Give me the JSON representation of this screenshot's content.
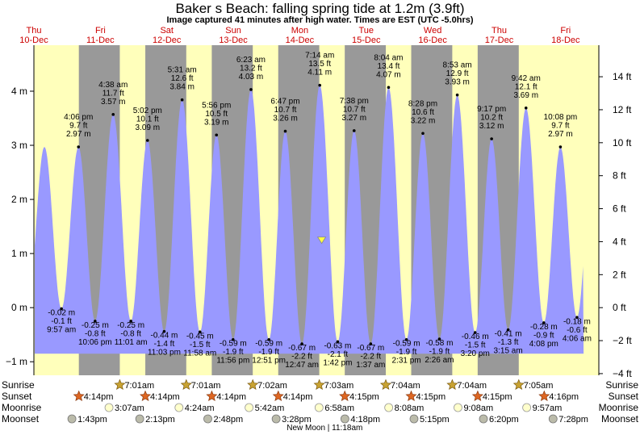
{
  "header": {
    "title": "Baker s Beach: falling  spring tide at 1.2m (3.9ft)",
    "subtitle": "Image captured 41 minutes after high water. Times are EST (UTC -5.0hrs)"
  },
  "colors": {
    "day": "#ffffbb",
    "night": "#999999",
    "tide_fill": "#9999ff",
    "day_label": "#cc0000",
    "marker": "#ffff44"
  },
  "chart_data": {
    "type": "area",
    "title": "Baker s Beach: falling  spring tide at 1.2m (3.9ft)",
    "x_range_hours": [
      0,
      204
    ],
    "ylim_m": [
      -1.25,
      4.85
    ],
    "y_left_ticks": [
      {
        "v": -1,
        "label": "−1 m"
      },
      {
        "v": 0,
        "label": "0 m"
      },
      {
        "v": 1,
        "label": "1 m"
      },
      {
        "v": 2,
        "label": "2 m"
      },
      {
        "v": 3,
        "label": "3 m"
      },
      {
        "v": 4,
        "label": "4 m"
      }
    ],
    "y_right_ticks": [
      {
        "v": -4,
        "label": "−4 ft"
      },
      {
        "v": -2,
        "label": "−2 ft"
      },
      {
        "v": 0,
        "label": "0 ft"
      },
      {
        "v": 2,
        "label": "2 ft"
      },
      {
        "v": 4,
        "label": "4 ft"
      },
      {
        "v": 6,
        "label": "6 ft"
      },
      {
        "v": 8,
        "label": "8 ft"
      },
      {
        "v": 10,
        "label": "10 ft"
      },
      {
        "v": 12,
        "label": "12 ft"
      },
      {
        "v": 14,
        "label": "14 ft"
      }
    ],
    "days": [
      {
        "dow": "Thu",
        "date": "10-Dec",
        "h": 0
      },
      {
        "dow": "Fri",
        "date": "11-Dec",
        "h": 24
      },
      {
        "dow": "Sat",
        "date": "12-Dec",
        "h": 48
      },
      {
        "dow": "Sun",
        "date": "13-Dec",
        "h": 72
      },
      {
        "dow": "Mon",
        "date": "14-Dec",
        "h": 96
      },
      {
        "dow": "Tue",
        "date": "15-Dec",
        "h": 120
      },
      {
        "dow": "Wed",
        "date": "16-Dec",
        "h": 144
      },
      {
        "dow": "Thu",
        "date": "17-Dec",
        "h": 168
      },
      {
        "dow": "Fri",
        "date": "18-Dec",
        "h": 192
      }
    ],
    "nights": [
      [
        16.23,
        31.02
      ],
      [
        40.23,
        55.02
      ],
      [
        64.23,
        79.03
      ],
      [
        88.23,
        103.05
      ],
      [
        112.25,
        127.07
      ],
      [
        136.25,
        151.07
      ],
      [
        160.25,
        175.08
      ]
    ],
    "tide_series": [
      {
        "kind": "low",
        "h": 9.95,
        "m": -0.02,
        "lines": [
          "-0.02 m",
          "-0.1 ft",
          "9:57 am"
        ]
      },
      {
        "kind": "high",
        "h": 16.1,
        "m": 2.97,
        "lines": [
          "4:06 pm",
          "9.7 ft",
          "2.97 m"
        ]
      },
      {
        "kind": "low",
        "h": 22.1,
        "m": -0.25,
        "lines": [
          "-0.25 m",
          "-0.8 ft",
          "10:06 pm"
        ]
      },
      {
        "kind": "high",
        "h": 28.63,
        "m": 3.57,
        "lines": [
          "4:38 am",
          "11.7 ft",
          "3.57 m"
        ]
      },
      {
        "kind": "low",
        "h": 35.02,
        "m": -0.25,
        "lines": [
          "-0.25 m",
          "-0.8 ft",
          "11:01 am"
        ]
      },
      {
        "kind": "high",
        "h": 41.03,
        "m": 3.09,
        "lines": [
          "5:02 pm",
          "10.1 ft",
          "3.09 m"
        ]
      },
      {
        "kind": "low",
        "h": 47.05,
        "m": -0.44,
        "lines": [
          "-0.44 m",
          "-1.4 ft",
          "11:03 pm"
        ]
      },
      {
        "kind": "high",
        "h": 53.52,
        "m": 3.84,
        "lines": [
          "5:31 am",
          "12.6 ft",
          "3.84 m"
        ]
      },
      {
        "kind": "low",
        "h": 59.97,
        "m": -0.45,
        "lines": [
          "-0.45 m",
          "-1.5 ft",
          "11:58 am"
        ]
      },
      {
        "kind": "high",
        "h": 65.93,
        "m": 3.19,
        "lines": [
          "5:56 pm",
          "10.5 ft",
          "3.19 m"
        ]
      },
      {
        "kind": "low",
        "h": 71.93,
        "m": -0.59,
        "lines": [
          "-0.59 m",
          "-1.9 ft",
          "11:56 pm"
        ]
      },
      {
        "kind": "high",
        "h": 78.38,
        "m": 4.03,
        "lines": [
          "6:23 am",
          "13.2 ft",
          "4.03 m"
        ]
      },
      {
        "kind": "low",
        "h": 84.85,
        "m": -0.59,
        "lines": [
          "-0.59 m",
          "-1.9 ft",
          "12:51 pm"
        ]
      },
      {
        "kind": "high",
        "h": 90.78,
        "m": 3.26,
        "lines": [
          "6:47 pm",
          "10.7 ft",
          "3.26 m"
        ]
      },
      {
        "kind": "low",
        "h": 96.78,
        "m": -0.67,
        "lines": [
          "-0.67 m",
          "-2.2 ft",
          "12:47 am"
        ]
      },
      {
        "kind": "high",
        "h": 103.23,
        "m": 4.11,
        "lines": [
          "7:14 am",
          "13.5 ft",
          "4.11 m"
        ]
      },
      {
        "kind": "low",
        "h": 109.7,
        "m": -0.63,
        "lines": [
          "-0.63 m",
          "-2.1 ft",
          "1:42 pm"
        ]
      },
      {
        "kind": "high",
        "h": 115.63,
        "m": 3.27,
        "lines": [
          "7:38 pm",
          "10.7 ft",
          "3.27 m"
        ]
      },
      {
        "kind": "low",
        "h": 121.62,
        "m": -0.67,
        "lines": [
          "-0.67 m",
          "-2.2 ft",
          "1:37 am"
        ]
      },
      {
        "kind": "high",
        "h": 128.07,
        "m": 4.07,
        "lines": [
          "8:04 am",
          "13.4 ft",
          "4.07 m"
        ]
      },
      {
        "kind": "low",
        "h": 134.52,
        "m": -0.59,
        "lines": [
          "-0.59 m",
          "-1.9 ft",
          "2:31 pm"
        ]
      },
      {
        "kind": "high",
        "h": 140.47,
        "m": 3.22,
        "lines": [
          "8:28 pm",
          "10.6 ft",
          "3.22 m"
        ]
      },
      {
        "kind": "low",
        "h": 146.43,
        "m": -0.58,
        "lines": [
          "-0.58 m",
          "-1.9 ft",
          "2:26 am"
        ]
      },
      {
        "kind": "high",
        "h": 152.88,
        "m": 3.93,
        "lines": [
          "8:53 am",
          "12.9 ft",
          "3.93 m"
        ]
      },
      {
        "kind": "low",
        "h": 159.33,
        "m": -0.46,
        "lines": [
          "-0.46 m",
          "-1.5 ft",
          "3:20 pm"
        ]
      },
      {
        "kind": "high",
        "h": 165.28,
        "m": 3.12,
        "lines": [
          "9:17 pm",
          "10.2 ft",
          "3.12 m"
        ]
      },
      {
        "kind": "low",
        "h": 171.25,
        "m": -0.41,
        "lines": [
          "-0.41 m",
          "-1.3 ft",
          "3:15 am"
        ]
      },
      {
        "kind": "high",
        "h": 177.7,
        "m": 3.69,
        "lines": [
          "9:42 am",
          "12.1 ft",
          "3.69 m"
        ]
      },
      {
        "kind": "low",
        "h": 184.13,
        "m": -0.28,
        "lines": [
          "-0.28 m",
          "-0.9 ft",
          "4:08 pm"
        ]
      },
      {
        "kind": "high",
        "h": 190.13,
        "m": 2.97,
        "lines": [
          "10:08 pm",
          "9.7 ft",
          "2.97 m"
        ]
      },
      {
        "kind": "low",
        "h": 196.1,
        "m": -0.18,
        "lines": [
          "-0.18 m",
          "-0.6 ft",
          "4:06 am"
        ]
      }
    ],
    "current": {
      "h": 103.92,
      "m": 1.2
    }
  },
  "almanac": {
    "row_labels": [
      "Sunrise",
      "Sunset",
      "Moonrise",
      "Moonset"
    ],
    "sunrise": [
      {
        "h": 31.02,
        "t": "7:01am"
      },
      {
        "h": 55.02,
        "t": "7:01am"
      },
      {
        "h": 79.03,
        "t": "7:02am"
      },
      {
        "h": 103.05,
        "t": "7:03am"
      },
      {
        "h": 127.07,
        "t": "7:04am"
      },
      {
        "h": 151.07,
        "t": "7:04am"
      },
      {
        "h": 175.08,
        "t": "7:05am"
      }
    ],
    "sunset": [
      {
        "h": 16.23,
        "t": "4:14pm"
      },
      {
        "h": 40.23,
        "t": "4:14pm"
      },
      {
        "h": 64.23,
        "t": "4:14pm"
      },
      {
        "h": 88.23,
        "t": "4:14pm"
      },
      {
        "h": 112.25,
        "t": "4:15pm"
      },
      {
        "h": 136.25,
        "t": "4:15pm"
      },
      {
        "h": 160.25,
        "t": "4:15pm"
      },
      {
        "h": 184.27,
        "t": "4:16pm"
      }
    ],
    "moonrise": [
      {
        "h": 27.12,
        "t": "3:07am"
      },
      {
        "h": 52.4,
        "t": "4:24am"
      },
      {
        "h": 77.7,
        "t": "5:42am"
      },
      {
        "h": 102.97,
        "t": "6:58am"
      },
      {
        "h": 128.13,
        "t": "8:08am"
      },
      {
        "h": 153.13,
        "t": "9:08am"
      },
      {
        "h": 177.95,
        "t": "9:57am"
      }
    ],
    "moonset": [
      {
        "h": 13.72,
        "t": "1:43pm"
      },
      {
        "h": 38.22,
        "t": "2:13pm"
      },
      {
        "h": 62.8,
        "t": "2:48pm"
      },
      {
        "h": 87.47,
        "t": "3:28pm"
      },
      {
        "h": 112.3,
        "t": "4:18pm"
      },
      {
        "h": 137.25,
        "t": "5:15pm"
      },
      {
        "h": 162.33,
        "t": "6:20pm"
      },
      {
        "h": 187.47,
        "t": "7:28pm"
      }
    ],
    "footer": "New Moon | 11:18am"
  }
}
